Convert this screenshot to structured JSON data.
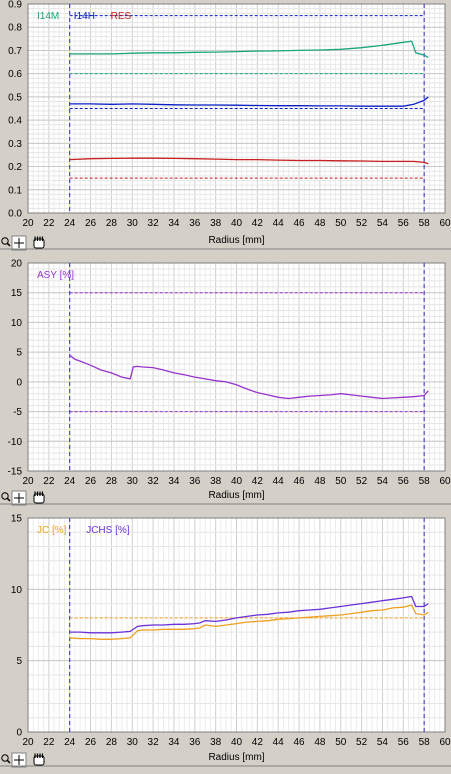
{
  "colors": {
    "background": "#d4d0c8",
    "plot_background": "#ffffff",
    "grid": "#e0e0e0",
    "tick_text": "#000000",
    "i14m": "#1aa57e",
    "i14h": "#0a1fc8",
    "res": "#c81e1e",
    "asy": "#9933cc",
    "jc": "#f0a020",
    "jchs": "#6a32d8",
    "bound_line": "#2a2ac8"
  },
  "toolbar_icons": [
    "zoom-icon",
    "crosshair-icon",
    "hand-pan-icon"
  ],
  "chart_data": [
    {
      "type": "line",
      "title": "",
      "xlabel": "Radius [mm]",
      "ylabel": "",
      "xlim": [
        20,
        60
      ],
      "ylim": [
        0,
        0.9
      ],
      "x_ticks": [
        20,
        22,
        24,
        26,
        28,
        30,
        32,
        34,
        36,
        38,
        40,
        42,
        44,
        46,
        48,
        50,
        52,
        54,
        56,
        58,
        60
      ],
      "y_ticks": [
        0.0,
        0.1,
        0.2,
        0.3,
        0.4,
        0.5,
        0.6,
        0.7,
        0.8,
        0.9
      ],
      "y_tick_labels": [
        "0.0",
        "0.1",
        "0.2",
        "0.3",
        "0.4",
        "0.5",
        "0.6",
        "0.7",
        "0.8",
        "0.9"
      ],
      "grid": true,
      "legend": "top-left",
      "vertical_markers": [
        24,
        58
      ],
      "series": [
        {
          "name": "I14M",
          "color": "#1aa57e",
          "x": [
            24,
            26,
            28,
            30,
            32,
            34,
            36,
            38,
            40,
            42,
            44,
            46,
            48,
            50,
            52,
            54,
            56,
            56.8,
            57.2,
            58,
            58.4
          ],
          "y": [
            0.685,
            0.685,
            0.685,
            0.688,
            0.69,
            0.69,
            0.692,
            0.693,
            0.695,
            0.697,
            0.698,
            0.7,
            0.702,
            0.705,
            0.712,
            0.722,
            0.735,
            0.74,
            0.69,
            0.68,
            0.67
          ]
        },
        {
          "name": "I14H",
          "color": "#0a1fc8",
          "x": [
            24,
            26,
            28,
            30,
            32,
            34,
            36,
            38,
            40,
            42,
            44,
            46,
            48,
            50,
            52,
            54,
            56,
            57,
            58,
            58.4
          ],
          "y": [
            0.47,
            0.47,
            0.468,
            0.47,
            0.468,
            0.466,
            0.465,
            0.465,
            0.464,
            0.463,
            0.462,
            0.462,
            0.461,
            0.461,
            0.46,
            0.46,
            0.46,
            0.468,
            0.485,
            0.5
          ]
        },
        {
          "name": "RES",
          "color": "#c81e1e",
          "x": [
            24,
            26,
            28,
            30,
            32,
            34,
            36,
            38,
            40,
            42,
            44,
            46,
            48,
            50,
            52,
            54,
            56,
            57,
            58,
            58.4
          ],
          "y": [
            0.23,
            0.234,
            0.235,
            0.236,
            0.236,
            0.235,
            0.234,
            0.232,
            0.23,
            0.23,
            0.228,
            0.226,
            0.226,
            0.225,
            0.224,
            0.222,
            0.222,
            0.222,
            0.218,
            0.212
          ]
        }
      ],
      "reference_lines": [
        {
          "y": 0.85,
          "color": "#0a1fc8"
        },
        {
          "y": 0.6,
          "color": "#1aa57e"
        },
        {
          "y": 0.45,
          "color": "#0a1fc8"
        },
        {
          "y": 0.15,
          "color": "#c81e1e"
        }
      ]
    },
    {
      "type": "line",
      "title": "",
      "xlabel": "Radius [mm]",
      "ylabel": "",
      "xlim": [
        20,
        60
      ],
      "ylim": [
        -15,
        20
      ],
      "x_ticks": [
        20,
        22,
        24,
        26,
        28,
        30,
        32,
        34,
        36,
        38,
        40,
        42,
        44,
        46,
        48,
        50,
        52,
        54,
        56,
        58,
        60
      ],
      "y_ticks": [
        -15,
        -10,
        -5,
        0,
        5,
        10,
        15,
        20
      ],
      "y_tick_labels": [
        "-15",
        "-10",
        "-5",
        "0",
        "5",
        "10",
        "15",
        "20"
      ],
      "grid": true,
      "legend": "top-left",
      "vertical_markers": [
        24,
        58
      ],
      "series": [
        {
          "name": "ASY [%]",
          "color": "#9933cc",
          "x": [
            24,
            24.5,
            25,
            26,
            27,
            28,
            29,
            29.8,
            30.1,
            30.5,
            31,
            32,
            33,
            34,
            35,
            36,
            37,
            38,
            39,
            40,
            41,
            42,
            43,
            44,
            45,
            46,
            47,
            48,
            49,
            50,
            51,
            52,
            53,
            54,
            55,
            56,
            57,
            58,
            58.4
          ],
          "y": [
            4.5,
            3.8,
            3.5,
            2.8,
            2.0,
            1.5,
            0.8,
            0.5,
            2.5,
            2.6,
            2.5,
            2.4,
            2.0,
            1.5,
            1.2,
            0.8,
            0.5,
            0.2,
            0.0,
            -0.5,
            -1.2,
            -1.8,
            -2.2,
            -2.6,
            -2.8,
            -2.6,
            -2.4,
            -2.3,
            -2.2,
            -2.0,
            -2.2,
            -2.4,
            -2.6,
            -2.8,
            -2.7,
            -2.6,
            -2.5,
            -2.3,
            -1.5
          ]
        }
      ],
      "reference_lines": [
        {
          "y": 15,
          "color": "#9933cc"
        },
        {
          "y": -5,
          "color": "#9933cc"
        }
      ]
    },
    {
      "type": "line",
      "title": "",
      "xlabel": "Radius [mm]",
      "ylabel": "",
      "xlim": [
        20,
        60
      ],
      "ylim": [
        0,
        15
      ],
      "x_ticks": [
        20,
        22,
        24,
        26,
        28,
        30,
        32,
        34,
        36,
        38,
        40,
        42,
        44,
        46,
        48,
        50,
        52,
        54,
        56,
        58,
        60
      ],
      "y_ticks": [
        0,
        5,
        10,
        15
      ],
      "y_tick_labels": [
        "0",
        "5",
        "10",
        "15"
      ],
      "grid": true,
      "legend": "top-left",
      "vertical_markers": [
        24,
        58
      ],
      "series": [
        {
          "name": "JC [%]",
          "color": "#f0a020",
          "x": [
            24,
            25,
            26,
            27,
            28,
            29,
            29.8,
            30.5,
            31,
            32,
            33,
            34,
            35,
            36,
            36.5,
            37,
            38,
            39,
            40,
            41,
            42,
            43,
            44,
            45,
            46,
            47,
            48,
            49,
            50,
            51,
            52,
            53,
            54,
            55,
            56,
            56.8,
            57.2,
            58,
            58.4
          ],
          "y": [
            6.6,
            6.55,
            6.55,
            6.5,
            6.5,
            6.55,
            6.6,
            7.1,
            7.15,
            7.15,
            7.2,
            7.2,
            7.2,
            7.25,
            7.3,
            7.5,
            7.4,
            7.5,
            7.6,
            7.7,
            7.75,
            7.8,
            7.9,
            7.95,
            8.0,
            8.05,
            8.1,
            8.15,
            8.2,
            8.3,
            8.4,
            8.5,
            8.55,
            8.7,
            8.75,
            8.9,
            8.3,
            8.2,
            8.4
          ]
        },
        {
          "name": "JCHS [%]",
          "color": "#6a32d8",
          "x": [
            24,
            25,
            26,
            27,
            28,
            29,
            29.8,
            30.5,
            31,
            32,
            33,
            34,
            35,
            36,
            36.5,
            37,
            38,
            39,
            40,
            41,
            42,
            43,
            44,
            45,
            46,
            47,
            48,
            49,
            50,
            51,
            52,
            53,
            54,
            55,
            56,
            56.8,
            57.2,
            58,
            58.4
          ],
          "y": [
            7.0,
            7.0,
            6.95,
            6.95,
            6.95,
            7.0,
            7.05,
            7.4,
            7.45,
            7.5,
            7.5,
            7.55,
            7.55,
            7.6,
            7.65,
            7.8,
            7.75,
            7.85,
            8.0,
            8.1,
            8.2,
            8.25,
            8.35,
            8.4,
            8.5,
            8.55,
            8.6,
            8.7,
            8.8,
            8.9,
            9.0,
            9.1,
            9.2,
            9.3,
            9.4,
            9.5,
            8.8,
            8.8,
            9.0
          ]
        }
      ],
      "reference_lines": [
        {
          "y": 8.0,
          "color": "#f0a020"
        }
      ]
    }
  ]
}
